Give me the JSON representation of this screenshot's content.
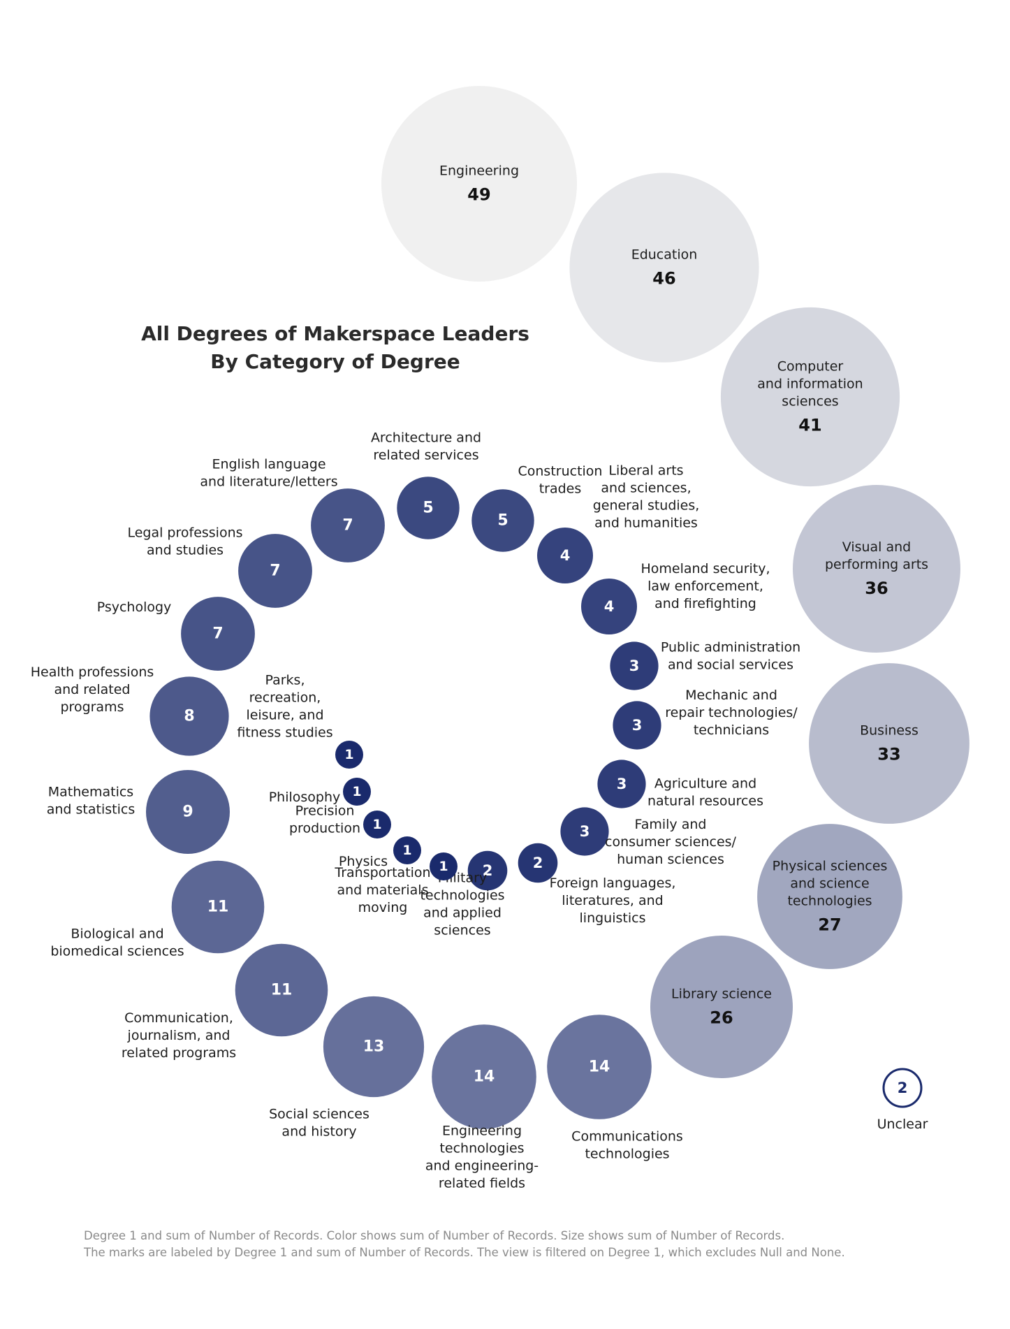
{
  "title": {
    "line1": "All Degrees of Makerspace Leaders",
    "line2": "By Category of Degree"
  },
  "footnote": {
    "line1": "Degree 1 and sum of Number of Records.  Color shows sum of Number of Records.  Size shows sum of Number of Records.",
    "line2": "The marks are labeled by Degree 1 and sum of Number of Records. The view is filtered on Degree 1, which excludes Null and None."
  },
  "colors": {
    "scale_low": "#1a2a6c",
    "scale_high": "#f0f0f0",
    "outline": "#1a2a6c"
  },
  "chart_data": {
    "type": "packed-bubble",
    "size_and_color_measure": "sum of Number of Records",
    "points": [
      {
        "category": "Engineering",
        "value": 49
      },
      {
        "category": "Education",
        "value": 46
      },
      {
        "category": "Computer and information sciences",
        "value": 41
      },
      {
        "category": "Visual and performing arts",
        "value": 36
      },
      {
        "category": "Business",
        "value": 33
      },
      {
        "category": "Physical sciences and science technologies",
        "value": 27
      },
      {
        "category": "Library science",
        "value": 26
      },
      {
        "category": "Communications technologies",
        "value": 14
      },
      {
        "category": "Engineering technologies and engineering-related fields",
        "value": 14
      },
      {
        "category": "Social sciences and history",
        "value": 13
      },
      {
        "category": "Communication, journalism, and related programs",
        "value": 11
      },
      {
        "category": "Biological and biomedical sciences",
        "value": 11
      },
      {
        "category": "Mathematics and statistics",
        "value": 9
      },
      {
        "category": "Health professions and related programs",
        "value": 8
      },
      {
        "category": "Psychology",
        "value": 7
      },
      {
        "category": "Legal professions and studies",
        "value": 7
      },
      {
        "category": "English language and literature/letters",
        "value": 7
      },
      {
        "category": "Architecture and related services",
        "value": 5
      },
      {
        "category": "Construction trades",
        "value": 5
      },
      {
        "category": "Liberal arts and sciences, general studies, and humanities",
        "value": 4
      },
      {
        "category": "Homeland security, law enforcement, and firefighting",
        "value": 4
      },
      {
        "category": "Public administration and social services",
        "value": 3
      },
      {
        "category": "Mechanic and repair technologies/ technicians",
        "value": 3
      },
      {
        "category": "Agriculture and natural resources",
        "value": 3
      },
      {
        "category": "Family and consumer sciences/ human sciences",
        "value": 3
      },
      {
        "category": "Foreign languages, literatures, and linguistics",
        "value": 2
      },
      {
        "category": "Military technologies and applied sciences",
        "value": 2
      },
      {
        "category": "Transportation and materials moving",
        "value": 1
      },
      {
        "category": "Physics",
        "value": 1
      },
      {
        "category": "Precision production",
        "value": 1
      },
      {
        "category": "Philosophy",
        "value": 1
      },
      {
        "category": "Parks, recreation, leisure, and fitness studies",
        "value": 1
      },
      {
        "category": "Unclear",
        "value": 2
      }
    ],
    "label_lines": [
      [
        "Engineering"
      ],
      [
        "Education"
      ],
      [
        "Computer",
        "and information",
        "sciences"
      ],
      [
        "Visual and",
        "performing arts"
      ],
      [
        "Business"
      ],
      [
        "Physical sciences",
        "and science",
        "technologies"
      ],
      [
        "Library science"
      ],
      [
        "Communications",
        "technologies"
      ],
      [
        "Engineering",
        "technologies",
        "and engineering-",
        "related fields"
      ],
      [
        "Social sciences",
        "and history"
      ],
      [
        "Communication,",
        "journalism, and",
        "related programs"
      ],
      [
        "Biological and",
        "biomedical sciences"
      ],
      [
        "Mathematics",
        "and statistics"
      ],
      [
        "Health professions",
        "and related",
        "programs"
      ],
      [
        "Psychology"
      ],
      [
        "Legal professions",
        "and studies"
      ],
      [
        "English language",
        "and literature/letters"
      ],
      [
        "Architecture and",
        "related services"
      ],
      [
        "Construction",
        "trades"
      ],
      [
        "Liberal arts",
        "and sciences,",
        "general studies,",
        "and humanities"
      ],
      [
        "Homeland security,",
        "law enforcement,",
        "and firefighting"
      ],
      [
        "Public administration",
        "and social services"
      ],
      [
        "Mechanic and",
        "repair technologies/",
        "technicians"
      ],
      [
        "Agriculture and",
        "natural resources"
      ],
      [
        "Family and",
        "consumer sciences/",
        "human sciences"
      ],
      [
        "Foreign languages,",
        "literatures, and",
        "linguistics"
      ],
      [
        "Military",
        "technologies",
        "and applied",
        "sciences"
      ],
      [
        "Transportation",
        "and materials",
        "moving"
      ],
      [
        "Physics"
      ],
      [
        "Precision",
        "production"
      ],
      [
        "Philosophy"
      ],
      [
        "Parks,",
        "recreation,",
        "leisure, and",
        "fitness studies"
      ],
      [
        "Unclear"
      ]
    ]
  }
}
